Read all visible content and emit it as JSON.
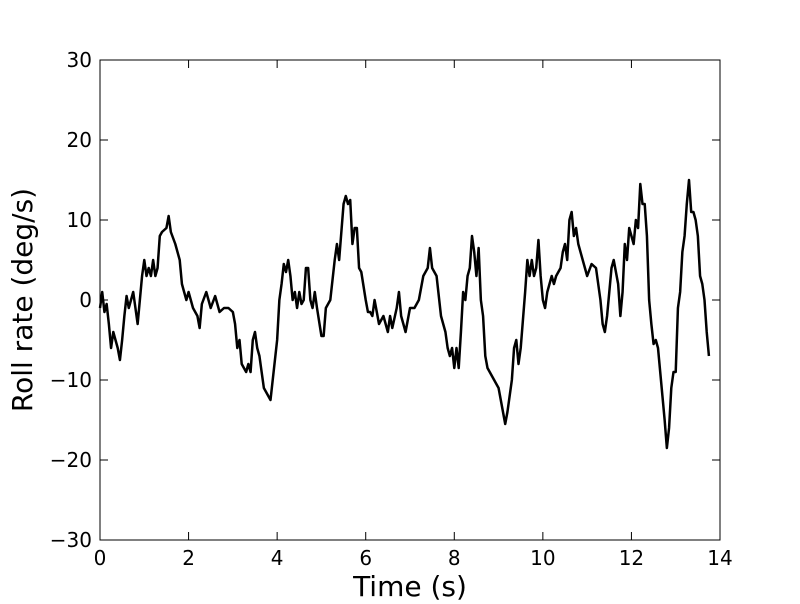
{
  "chart_data": {
    "type": "line",
    "x_label": "Time (s)",
    "y_label": "Roll rate (deg/s)",
    "xlim": [
      0,
      14
    ],
    "ylim": [
      -30,
      30
    ],
    "xticks": [
      0,
      2,
      4,
      6,
      8,
      10,
      12,
      14
    ],
    "yticks": [
      {
        "value": -30,
        "label": "−30"
      },
      {
        "value": -20,
        "label": "−20"
      },
      {
        "value": -10,
        "label": "−10"
      },
      0,
      10,
      20,
      30
    ],
    "series": [
      {
        "color": "#000000",
        "x": [
          0,
          0.05,
          0.1,
          0.15,
          0.2,
          0.25,
          0.3,
          0.35,
          0.4,
          0.45,
          0.5,
          0.55,
          0.6,
          0.65,
          0.7,
          0.75,
          0.8,
          0.85,
          0.9,
          0.95,
          1.0,
          1.05,
          1.1,
          1.15,
          1.2,
          1.25,
          1.3,
          1.35,
          1.4,
          1.5,
          1.55,
          1.6,
          1.7,
          1.8,
          1.85,
          1.9,
          1.95,
          2.0,
          2.05,
          2.1,
          2.2,
          2.25,
          2.3,
          2.4,
          2.5,
          2.6,
          2.7,
          2.8,
          2.9,
          3.0,
          3.05,
          3.1,
          3.15,
          3.2,
          3.3,
          3.35,
          3.4,
          3.45,
          3.5,
          3.55,
          3.6,
          3.65,
          3.7,
          3.8,
          3.85,
          3.9,
          4.0,
          4.05,
          4.1,
          4.15,
          4.2,
          4.25,
          4.3,
          4.35,
          4.4,
          4.45,
          4.5,
          4.55,
          4.6,
          4.65,
          4.7,
          4.75,
          4.8,
          4.85,
          4.9,
          5.0,
          5.05,
          5.1,
          5.2,
          5.3,
          5.35,
          5.4,
          5.5,
          5.55,
          5.6,
          5.65,
          5.7,
          5.75,
          5.8,
          5.85,
          5.9,
          6.0,
          6.05,
          6.1,
          6.15,
          6.2,
          6.25,
          6.3,
          6.4,
          6.5,
          6.55,
          6.6,
          6.7,
          6.75,
          6.8,
          6.85,
          6.9,
          7.0,
          7.1,
          7.2,
          7.3,
          7.4,
          7.45,
          7.5,
          7.6,
          7.7,
          7.8,
          7.85,
          7.9,
          7.95,
          8.0,
          8.05,
          8.1,
          8.15,
          8.2,
          8.25,
          8.3,
          8.35,
          8.4,
          8.45,
          8.5,
          8.55,
          8.6,
          8.65,
          8.7,
          8.75,
          8.8,
          8.9,
          9.0,
          9.1,
          9.15,
          9.2,
          9.3,
          9.35,
          9.4,
          9.45,
          9.5,
          9.6,
          9.65,
          9.7,
          9.75,
          9.8,
          9.85,
          9.9,
          9.95,
          10.0,
          10.05,
          10.1,
          10.15,
          10.2,
          10.25,
          10.3,
          10.4,
          10.45,
          10.5,
          10.55,
          10.6,
          10.65,
          10.7,
          10.75,
          10.8,
          10.9,
          11.0,
          11.1,
          11.2,
          11.3,
          11.35,
          11.4,
          11.45,
          11.5,
          11.55,
          11.6,
          11.7,
          11.75,
          11.8,
          11.85,
          11.9,
          11.95,
          12.0,
          12.05,
          12.1,
          12.15,
          12.2,
          12.25,
          12.3,
          12.35,
          12.4,
          12.45,
          12.5,
          12.55,
          12.6,
          12.7,
          12.75,
          12.8,
          12.85,
          12.9,
          12.95,
          13.0,
          13.05,
          13.1,
          13.15,
          13.2,
          13.25,
          13.3,
          13.35,
          13.4,
          13.45,
          13.5,
          13.55,
          13.6,
          13.65,
          13.7,
          13.75
        ],
        "values": [
          -1,
          1,
          -1.5,
          -0.5,
          -3,
          -6,
          -4,
          -5,
          -6,
          -7.5,
          -5,
          -2,
          0.5,
          -1,
          0,
          1,
          -1,
          -3,
          0,
          3,
          5,
          3,
          4,
          3,
          5,
          3,
          4,
          8,
          8.5,
          9,
          10.5,
          8.5,
          7,
          5,
          2,
          1,
          0,
          1,
          0,
          -1,
          -2,
          -3.5,
          -0.5,
          1,
          -1,
          0.5,
          -1.5,
          -1,
          -1,
          -1.5,
          -3,
          -6,
          -5,
          -8,
          -9,
          -8,
          -9,
          -5,
          -4,
          -6,
          -7,
          -9,
          -11,
          -12,
          -12.5,
          -10,
          -5,
          0,
          2,
          4.5,
          3.5,
          5,
          3,
          0,
          1,
          -1,
          1,
          -0.5,
          0,
          4,
          4,
          0,
          -1,
          1,
          -1,
          -4.5,
          -4.5,
          -1,
          0,
          5,
          7,
          5,
          12,
          13,
          12,
          12.5,
          7,
          9,
          9,
          4,
          3.5,
          0,
          -1.5,
          -1.5,
          -2,
          0,
          -1.5,
          -3,
          -2,
          -4,
          -2,
          -3.5,
          -1,
          1,
          -2,
          -3,
          -4,
          -1,
          -1,
          0,
          3,
          4,
          6.5,
          4,
          3,
          -2,
          -4,
          -6,
          -7,
          -6,
          -8.5,
          -6,
          -8.5,
          -4,
          1,
          0,
          3,
          4,
          8,
          6,
          3,
          6.5,
          0,
          -2,
          -7,
          -8.5,
          -9,
          -10,
          -11,
          -14,
          -15.5,
          -14,
          -10,
          -6,
          -5,
          -8,
          -6,
          1,
          5,
          3,
          5,
          3,
          4,
          7.5,
          3,
          0,
          -1,
          1,
          2,
          3,
          2,
          3,
          4,
          6,
          7,
          5,
          10,
          11,
          8,
          9,
          7,
          5,
          3,
          4.5,
          4,
          0,
          -3,
          -4,
          -2,
          1,
          4,
          5,
          2,
          -2,
          1,
          7,
          5,
          9,
          8,
          7,
          10,
          9,
          14.5,
          12,
          12,
          8,
          0,
          -3,
          -5.5,
          -5,
          -6,
          -12,
          -15,
          -18.5,
          -16,
          -11,
          -9,
          -9,
          -1,
          1,
          6,
          8,
          12,
          15,
          11,
          11,
          10,
          8,
          3,
          2,
          0,
          -4,
          -7
        ]
      }
    ]
  }
}
